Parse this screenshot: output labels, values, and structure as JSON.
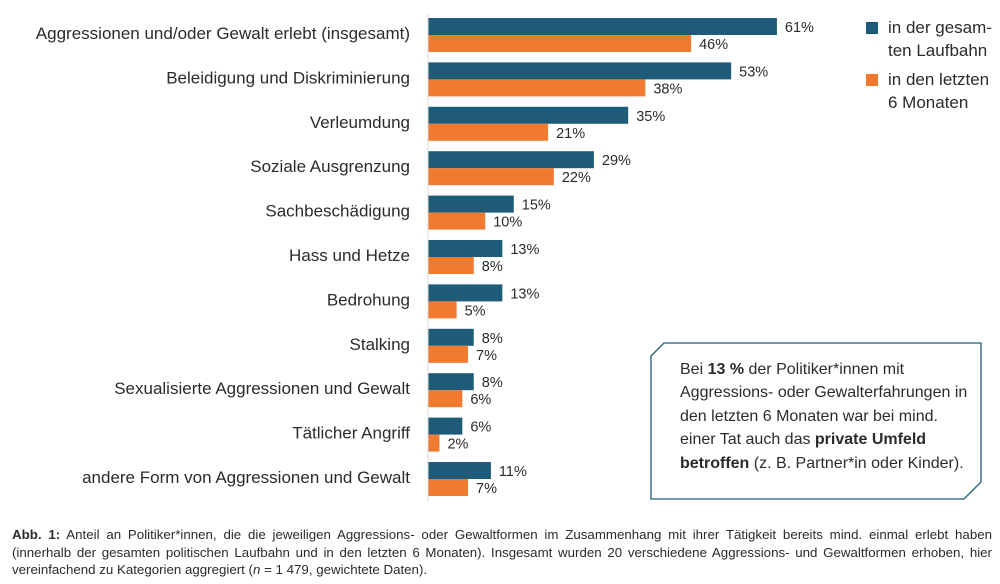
{
  "colors": {
    "series1": "#1e5b78",
    "series2": "#ef7a30",
    "note_border": "#1e5b78"
  },
  "chart_data": {
    "type": "bar",
    "orientation": "horizontal",
    "categories": [
      "Aggressionen und/oder Gewalt erlebt (insgesamt)",
      "Beleidigung und Diskriminierung",
      "Verleumdung",
      "Soziale Ausgrenzung",
      "Sachbeschädigung",
      "Hass und Hetze",
      "Bedrohung",
      "Stalking",
      "Sexualisierte Aggressionen und Gewalt",
      "Tätlicher Angriff",
      "andere Form von Aggressionen und Gewalt"
    ],
    "series": [
      {
        "name": "in der gesamten Laufbahn",
        "values": [
          61,
          53,
          35,
          29,
          15,
          13,
          13,
          8,
          8,
          6,
          11
        ],
        "labels": [
          "61%",
          "53%",
          "35%",
          "29%",
          "15%",
          "13%",
          "13%",
          "8%",
          "8%",
          "6%",
          "11%"
        ]
      },
      {
        "name": "in den letzten 6 Monaten",
        "values": [
          46,
          38,
          21,
          22,
          10,
          8,
          5,
          7,
          6,
          2,
          7
        ],
        "labels": [
          "46%",
          "38%",
          "21%",
          "22%",
          "10%",
          "8%",
          "5%",
          "7%",
          "6%",
          "2%",
          "7%"
        ]
      }
    ],
    "unit": "%",
    "legend_position": "top-right"
  },
  "legend": [
    {
      "lines": [
        "in der gesam-",
        "ten Laufbahn"
      ]
    },
    {
      "lines": [
        "in den letzten",
        "6 Monaten"
      ]
    }
  ],
  "note": {
    "parts": [
      {
        "text": "Bei ",
        "bold": false
      },
      {
        "text": "13 %",
        "bold": true
      },
      {
        "text": " der Politiker*innen mit Aggressions- oder Gewalterfahrungen in den letzten 6 Monaten war bei mind. einer Tat auch das ",
        "bold": false
      },
      {
        "text": "private Umfeld betroffen",
        "bold": true
      },
      {
        "text": " (z. B. Partner*in oder Kinder).",
        "bold": false
      }
    ]
  },
  "caption": {
    "label": "Abb. 1:",
    "text1": " Anteil an Politiker*innen, die die jeweiligen Aggressions- oder Gewaltformen im Zusammenhang mit ihrer Tätigkeit bereits mind. einmal erlebt haben (innerhalb der gesamten politischen Laufbahn und in den letzten 6 Monaten). Insgesamt wurden 20 verschiedene Aggressions- und Gewaltformen erhoben, hier vereinfachend zu Kategorien aggregiert (",
    "n_symbol": "n",
    "text2": " = 1 479, gewichtete Daten)."
  }
}
